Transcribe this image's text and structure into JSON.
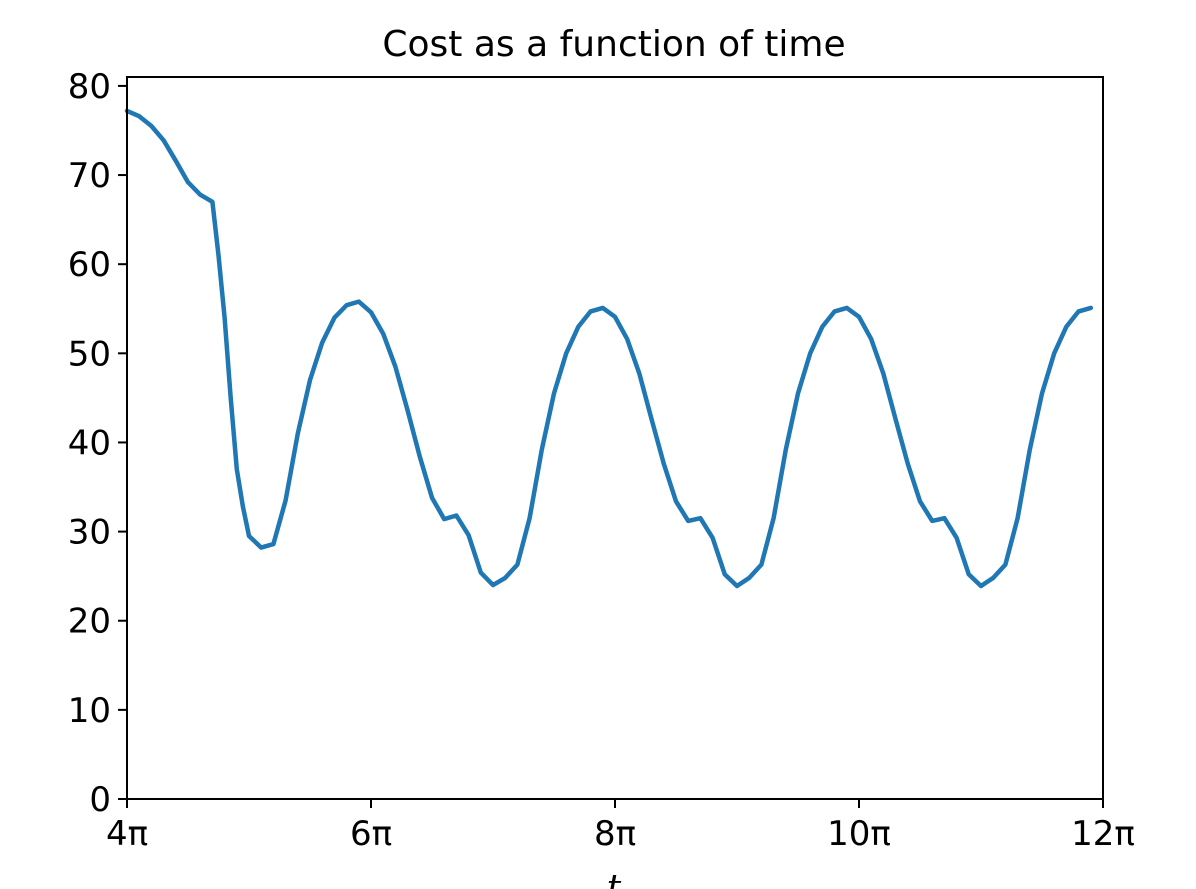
{
  "chart_data": {
    "type": "line",
    "title": "Cost as a function of time",
    "xlabel": "t",
    "ylabel": "",
    "x_unit": "multiples of π",
    "xlim": [
      4,
      12
    ],
    "ylim": [
      0,
      81
    ],
    "x_ticks": [
      4,
      6,
      8,
      10,
      12
    ],
    "x_tick_labels": [
      "4π",
      "6π",
      "8π",
      "10π",
      "12π"
    ],
    "y_ticks": [
      0,
      10,
      20,
      30,
      40,
      50,
      60,
      70,
      80
    ],
    "y_tick_labels": [
      "0",
      "10",
      "20",
      "30",
      "40",
      "50",
      "60",
      "70",
      "80"
    ],
    "grid": false,
    "series_color": "#1f77b4",
    "series": [
      {
        "points": [
          [
            4.0,
            77.2
          ],
          [
            4.1,
            76.6
          ],
          [
            4.2,
            75.5
          ],
          [
            4.3,
            73.9
          ],
          [
            4.4,
            71.6
          ],
          [
            4.5,
            69.2
          ],
          [
            4.6,
            67.8
          ],
          [
            4.7,
            67.0
          ],
          [
            4.75,
            61.0
          ],
          [
            4.8,
            54.0
          ],
          [
            4.85,
            45.0
          ],
          [
            4.9,
            37.0
          ],
          [
            4.95,
            32.8
          ],
          [
            5.0,
            29.5
          ],
          [
            5.1,
            28.2
          ],
          [
            5.2,
            28.6
          ],
          [
            5.3,
            33.5
          ],
          [
            5.4,
            41.0
          ],
          [
            5.5,
            47.0
          ],
          [
            5.6,
            51.2
          ],
          [
            5.7,
            54.0
          ],
          [
            5.8,
            55.4
          ],
          [
            5.9,
            55.8
          ],
          [
            6.0,
            54.6
          ],
          [
            6.1,
            52.2
          ],
          [
            6.2,
            48.5
          ],
          [
            6.3,
            43.6
          ],
          [
            6.4,
            38.4
          ],
          [
            6.5,
            33.8
          ],
          [
            6.6,
            31.4
          ],
          [
            6.7,
            31.8
          ],
          [
            6.8,
            29.6
          ],
          [
            6.9,
            25.4
          ],
          [
            7.0,
            24.0
          ],
          [
            7.1,
            24.8
          ],
          [
            7.2,
            26.3
          ],
          [
            7.3,
            31.5
          ],
          [
            7.4,
            39.2
          ],
          [
            7.5,
            45.5
          ],
          [
            7.6,
            50.0
          ],
          [
            7.7,
            53.0
          ],
          [
            7.8,
            54.7
          ],
          [
            7.9,
            55.1
          ],
          [
            8.0,
            54.1
          ],
          [
            8.1,
            51.6
          ],
          [
            8.2,
            47.7
          ],
          [
            8.3,
            42.6
          ],
          [
            8.4,
            37.6
          ],
          [
            8.5,
            33.4
          ],
          [
            8.6,
            31.2
          ],
          [
            8.7,
            31.5
          ],
          [
            8.8,
            29.3
          ],
          [
            8.9,
            25.2
          ],
          [
            9.0,
            23.9
          ],
          [
            9.1,
            24.8
          ],
          [
            9.2,
            26.3
          ],
          [
            9.3,
            31.5
          ],
          [
            9.4,
            39.2
          ],
          [
            9.5,
            45.5
          ],
          [
            9.6,
            50.0
          ],
          [
            9.7,
            53.0
          ],
          [
            9.8,
            54.7
          ],
          [
            9.9,
            55.1
          ],
          [
            10.0,
            54.1
          ],
          [
            10.1,
            51.6
          ],
          [
            10.2,
            47.7
          ],
          [
            10.3,
            42.6
          ],
          [
            10.4,
            37.6
          ],
          [
            10.5,
            33.4
          ],
          [
            10.6,
            31.2
          ],
          [
            10.7,
            31.5
          ],
          [
            10.8,
            29.3
          ],
          [
            10.9,
            25.2
          ],
          [
            11.0,
            23.9
          ],
          [
            11.1,
            24.8
          ],
          [
            11.2,
            26.3
          ],
          [
            11.3,
            31.5
          ],
          [
            11.4,
            39.2
          ],
          [
            11.5,
            45.5
          ],
          [
            11.6,
            50.0
          ],
          [
            11.7,
            53.0
          ],
          [
            11.8,
            54.7
          ],
          [
            11.9,
            55.1
          ]
        ]
      }
    ]
  }
}
